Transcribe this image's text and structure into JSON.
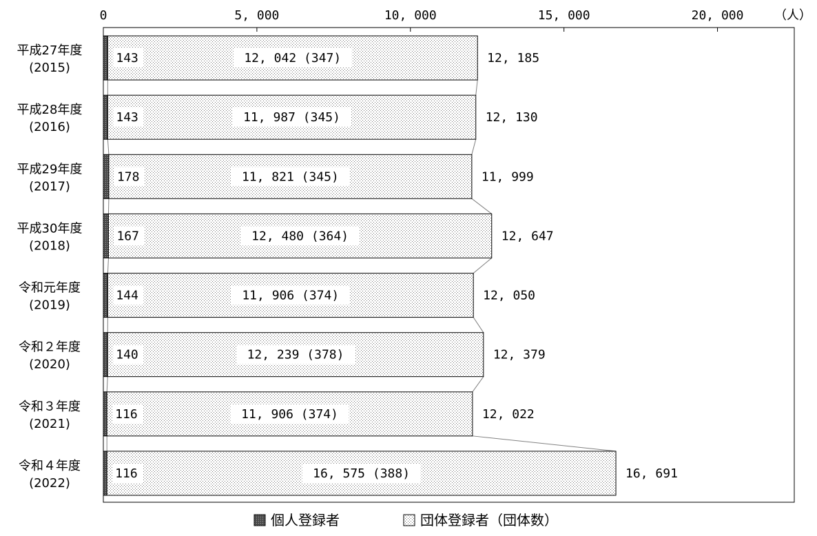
{
  "chart_data": {
    "type": "bar",
    "orientation": "horizontal",
    "stacked": true,
    "title": "",
    "unit_label": "（人）",
    "xlim": [
      0,
      22500
    ],
    "ticks": [
      0,
      5000,
      10000,
      15000,
      20000
    ],
    "tick_labels": [
      "0",
      "5, 000",
      "10, 000",
      "15, 000",
      "20, 000"
    ],
    "categories": [
      [
        "平成27年度",
        "(2015)"
      ],
      [
        "平成28年度",
        "(2016)"
      ],
      [
        "平成29年度",
        "(2017)"
      ],
      [
        "平成30年度",
        "(2018)"
      ],
      [
        "令和元年度",
        "(2019)"
      ],
      [
        "令和２年度",
        "(2020)"
      ],
      [
        "令和３年度",
        "(2021)"
      ],
      [
        "令和４年度",
        "(2022)"
      ]
    ],
    "series": [
      {
        "name": "個人登録者",
        "color": "#555555",
        "values": [
          143,
          143,
          178,
          167,
          144,
          140,
          116,
          116
        ],
        "labels": [
          "143",
          "143",
          "178",
          "167",
          "144",
          "140",
          "116",
          "116"
        ]
      },
      {
        "name": "団体登録者（団体数）",
        "color": "#e6e6e6",
        "values": [
          12042,
          11987,
          11821,
          12480,
          11906,
          12239,
          11906,
          16575
        ],
        "labels": [
          "12, 042 (347)",
          "11, 987 (345)",
          "11, 821 (345)",
          "12, 480 (364)",
          "11, 906 (374)",
          "12, 239 (378)",
          "11, 906 (374)",
          "16, 575 (388)"
        ],
        "group_counts": [
          347,
          345,
          345,
          364,
          374,
          378,
          374,
          388
        ]
      }
    ],
    "totals": [
      12185,
      12130,
      11999,
      12647,
      12050,
      12379,
      12022,
      16691
    ],
    "total_labels": [
      "12, 185",
      "12, 130",
      "11, 999",
      "12, 647",
      "12, 050",
      "12, 379",
      "12, 022",
      "16, 691"
    ],
    "series_lines": true,
    "grid": false,
    "legend_position": "bottom"
  }
}
